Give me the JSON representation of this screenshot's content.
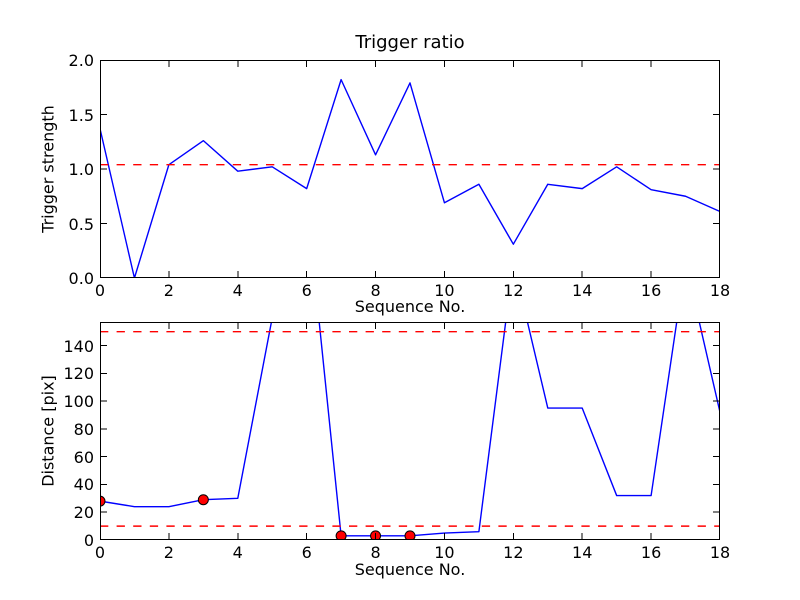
{
  "figure": {
    "background": "#ffffff",
    "axis_color": "#000000"
  },
  "chart_data": [
    {
      "type": "line",
      "title": "Trigger ratio",
      "xlabel": "Sequence No.",
      "ylabel": "Trigger strength",
      "xlim": [
        0,
        18
      ],
      "ylim": [
        0,
        2.0
      ],
      "grid": false,
      "legend": null,
      "xticks": [
        0,
        2,
        4,
        6,
        8,
        10,
        12,
        14,
        16,
        18
      ],
      "xtick_labels": [
        "0",
        "2",
        "4",
        "6",
        "8",
        "10",
        "12",
        "14",
        "16",
        "18"
      ],
      "yticks": [
        0.0,
        0.5,
        1.0,
        1.5,
        2.0
      ],
      "ytick_labels": [
        "0.0",
        "0.5",
        "1.0",
        "1.5",
        "2.0"
      ],
      "x": [
        0,
        1,
        2,
        3,
        4,
        5,
        6,
        7,
        8,
        9,
        10,
        11,
        12,
        13,
        14,
        15,
        16,
        17,
        18
      ],
      "series": [
        {
          "name": "trigger strength",
          "color": "#0000ff",
          "style": "solid",
          "values": [
            1.37,
            0.0,
            1.04,
            1.26,
            0.98,
            1.02,
            0.82,
            1.82,
            1.13,
            1.79,
            0.69,
            0.86,
            0.31,
            0.86,
            0.82,
            1.02,
            0.81,
            0.75,
            0.61
          ]
        }
      ],
      "thresholds": [
        {
          "name": "trigger threshold",
          "value": 1.04,
          "color": "#ff0000",
          "style": "dashed"
        }
      ],
      "markers": []
    },
    {
      "type": "line",
      "title": "",
      "xlabel": "Sequence No.",
      "ylabel": "Distance [pix]",
      "xlim": [
        0,
        18
      ],
      "ylim": [
        0,
        157
      ],
      "grid": false,
      "legend": null,
      "xticks": [
        0,
        2,
        4,
        6,
        8,
        10,
        12,
        14,
        16,
        18
      ],
      "xtick_labels": [
        "0",
        "2",
        "4",
        "6",
        "8",
        "10",
        "12",
        "14",
        "16",
        "18"
      ],
      "yticks": [
        0,
        20,
        40,
        60,
        80,
        100,
        120,
        140
      ],
      "ytick_labels": [
        "0",
        "20",
        "40",
        "60",
        "80",
        "100",
        "120",
        "140"
      ],
      "x": [
        0,
        1,
        2,
        3,
        4,
        5,
        6,
        7,
        8,
        9,
        10,
        11,
        12,
        13,
        14,
        15,
        16,
        17,
        18
      ],
      "series": [
        {
          "name": "distance",
          "color": "#0000ff",
          "style": "solid",
          "values": [
            28,
            24,
            24,
            29,
            30,
            160,
            245,
            3,
            3,
            3,
            5,
            6,
            200,
            95,
            95,
            32,
            32,
            200,
            92
          ]
        }
      ],
      "thresholds": [
        {
          "name": "upper distance threshold",
          "value": 150,
          "color": "#ff0000",
          "style": "dashed"
        },
        {
          "name": "lower distance threshold",
          "value": 10,
          "color": "#ff0000",
          "style": "dashed"
        }
      ],
      "markers": [
        {
          "x": 0,
          "y": 28
        },
        {
          "x": 3,
          "y": 29
        },
        {
          "x": 7,
          "y": 3
        },
        {
          "x": 8,
          "y": 3
        },
        {
          "x": 9,
          "y": 3
        }
      ],
      "marker_style": {
        "shape": "circle",
        "fill": "#ff0000",
        "edge": "#000000",
        "radius": 5
      }
    }
  ]
}
